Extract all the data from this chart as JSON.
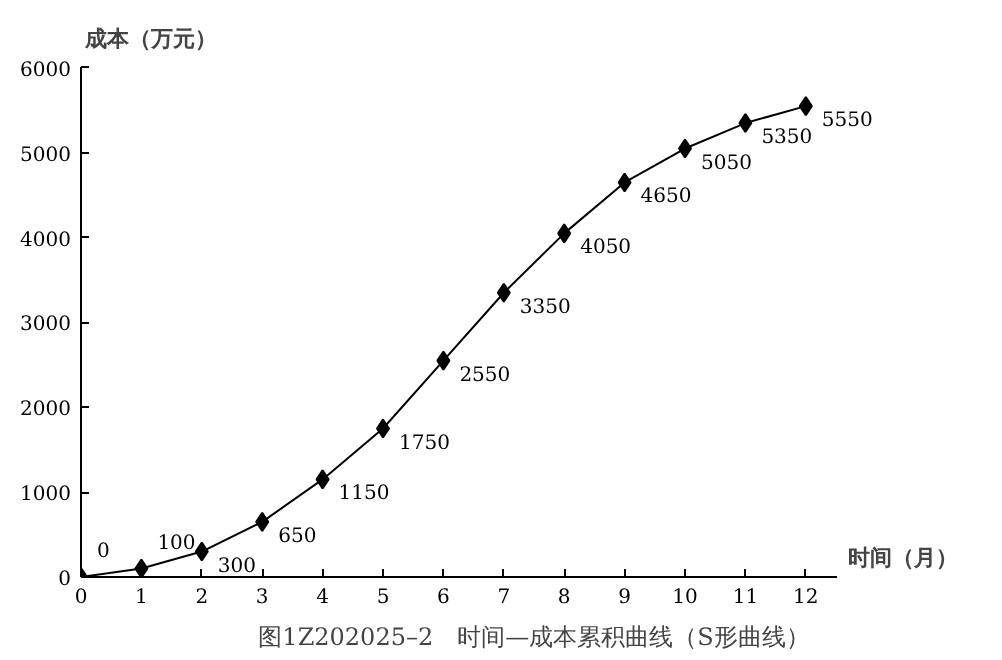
{
  "chart_data": {
    "type": "line",
    "title": "图1Z202025–2　时间—成本累积曲线（S形曲线）",
    "xlabel": "时间（月）",
    "ylabel": "成本（万元）",
    "x": [
      0,
      1,
      2,
      3,
      4,
      5,
      6,
      7,
      8,
      9,
      10,
      11,
      12
    ],
    "series": [
      {
        "color": "#000000",
        "values": [
          0,
          100,
          300,
          650,
          1150,
          1750,
          2550,
          3350,
          4050,
          4650,
          5050,
          5350,
          5550
        ]
      }
    ],
    "xlim": [
      0,
      12.5
    ],
    "ylim": [
      0,
      6000
    ],
    "xticks": [
      0,
      1,
      2,
      3,
      4,
      5,
      6,
      7,
      8,
      9,
      10,
      11,
      12
    ],
    "yticks": [
      0,
      1000,
      2000,
      3000,
      4000,
      5000,
      6000
    ],
    "data_labels": true,
    "marker": "diamond",
    "line_style": "solid"
  }
}
